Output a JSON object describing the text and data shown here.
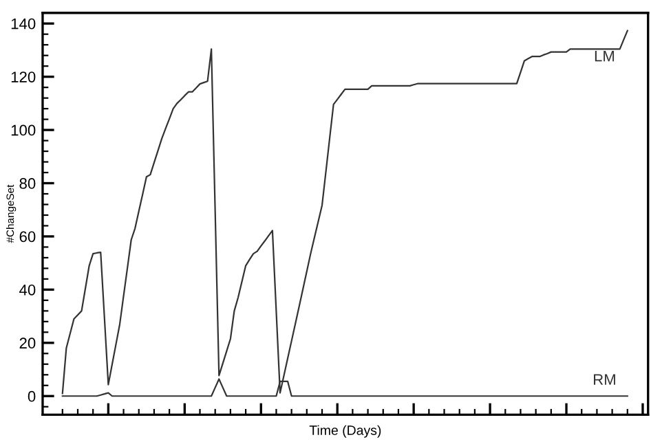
{
  "chart_data": {
    "type": "line",
    "xlabel": "Time (Days)",
    "ylabel": "#ChangeSet",
    "categories": [
      null,
      null,
      null,
      null,
      null,
      null,
      null,
      null,
      null,
      null,
      null,
      null,
      null,
      null,
      null,
      null,
      null,
      null,
      null,
      null,
      null,
      null,
      null,
      null,
      null,
      null,
      null,
      null,
      null,
      null,
      null,
      null,
      null,
      null,
      null,
      null,
      null,
      null,
      null,
      null,
      null,
      null,
      null,
      null,
      null,
      null,
      null,
      null,
      null,
      null,
      null,
      null,
      null,
      null,
      null,
      null,
      null,
      null,
      null,
      null,
      null,
      null,
      null,
      null,
      null,
      null,
      null,
      null,
      null,
      null,
      null,
      null,
      null,
      null,
      null,
      null,
      null,
      null,
      null,
      null,
      null,
      null,
      null,
      null,
      null,
      null,
      null,
      null,
      null,
      null,
      null,
      null,
      null,
      null,
      null,
      null,
      null,
      null,
      null,
      null,
      null,
      null,
      null,
      null,
      null,
      null,
      null,
      null,
      null,
      null,
      null,
      null,
      null,
      null,
      null,
      null,
      null,
      null,
      null,
      null,
      null,
      null,
      null,
      null,
      null,
      null,
      null,
      null,
      null,
      null,
      null,
      null,
      null,
      null,
      null,
      null,
      null,
      null,
      null,
      null,
      null,
      null,
      null,
      null,
      null,
      null,
      null,
      null,
      null
    ],
    "ylim": [
      -7,
      144
    ],
    "yticks": [
      0,
      20,
      40,
      60,
      80,
      100,
      120,
      140
    ],
    "grid": false,
    "legend": false,
    "marker": "none",
    "line_style": "solid",
    "series": [
      {
        "name": "LM",
        "color": "#333333",
        "values": [
          1,
          18,
          23.5,
          29,
          30.5,
          32,
          40.5,
          49,
          53.5,
          53.8,
          54,
          29.2,
          4.3,
          11.9,
          19.4,
          27,
          37.6,
          48.1,
          58.7,
          63,
          69.5,
          75.9,
          82.4,
          83.2,
          87.7,
          92.2,
          96.7,
          100.5,
          104.2,
          108,
          110,
          111.4,
          112.9,
          114.3,
          114.3,
          115.8,
          117.3,
          117.8,
          118.3,
          130.4,
          69.1,
          7.7,
          12.3,
          16.9,
          21.5,
          32,
          37,
          43,
          49,
          51.3,
          53.5,
          54.4,
          56.4,
          58.3,
          60.3,
          62.2,
          31.7,
          1.2,
          7.7,
          14.2,
          20.7,
          27.2,
          33.7,
          40.3,
          46.9,
          53.5,
          59.6,
          65.6,
          71.7,
          84.3,
          97,
          109.6,
          111.5,
          113.4,
          115.3,
          115.3,
          115.3,
          115.3,
          115.3,
          115.3,
          115.3,
          116.6,
          116.6,
          116.6,
          116.6,
          116.6,
          116.6,
          116.6,
          116.6,
          116.6,
          116.6,
          116.6,
          117,
          117.4,
          117.4,
          117.4,
          117.4,
          117.4,
          117.4,
          117.4,
          117.4,
          117.4,
          117.4,
          117.4,
          117.4,
          117.4,
          117.4,
          117.4,
          117.4,
          117.4,
          117.4,
          117.4,
          117.4,
          117.4,
          117.4,
          117.4,
          117.4,
          117.4,
          117.4,
          117.4,
          121.7,
          126,
          126.8,
          127.6,
          127.6,
          127.6,
          128.2,
          128.7,
          129.3,
          129.3,
          129.3,
          129.3,
          129.3,
          130.4,
          130.4,
          130.4,
          130.4,
          130.4,
          130.4,
          130.4,
          130.4,
          130.4,
          130.4,
          130.4,
          130.4,
          130.4,
          130.4,
          133.9,
          137.3
        ]
      },
      {
        "name": "RM",
        "color": "#333333",
        "values": [
          0,
          0,
          0,
          0,
          0,
          0,
          0,
          0,
          0,
          0,
          0.4,
          0.8,
          1.2,
          0,
          0,
          0,
          0,
          0,
          0,
          0,
          0,
          0,
          0,
          0,
          0,
          0,
          0,
          0,
          0,
          0,
          0,
          0,
          0,
          0,
          0,
          0,
          0,
          0,
          0,
          0,
          3.2,
          6.4,
          3.2,
          0,
          0,
          0,
          0,
          0,
          0,
          0,
          0,
          0,
          0,
          0,
          0,
          0,
          0,
          5.5,
          5.5,
          5.5,
          0,
          0,
          0,
          0,
          0,
          0,
          0,
          0,
          0,
          0,
          0,
          0,
          0,
          0,
          0,
          0,
          0,
          0,
          0,
          0,
          0,
          0,
          0,
          0,
          0,
          0,
          0,
          0,
          0,
          0,
          0,
          0,
          0,
          0,
          0,
          0,
          0,
          0,
          0,
          0,
          0,
          0,
          0,
          0,
          0,
          0,
          0,
          0,
          0,
          0,
          0,
          0,
          0,
          0,
          0,
          0,
          0,
          0,
          0,
          0,
          0,
          0,
          0,
          0,
          0,
          0,
          0,
          0,
          0,
          0,
          0,
          0,
          0,
          0,
          0,
          0,
          0,
          0,
          0,
          0,
          0,
          0,
          0,
          0,
          0,
          0,
          0,
          0,
          0
        ]
      }
    ]
  }
}
